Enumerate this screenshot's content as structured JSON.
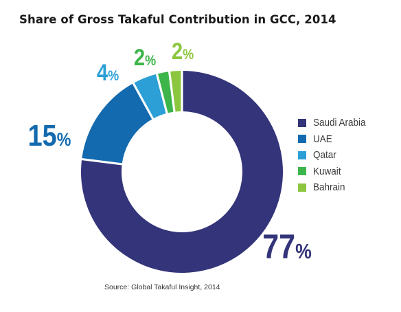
{
  "title": "Share of Gross Takaful Contribution in GCC, 2014",
  "source": "Source: Global Takaful Insight, 2014",
  "chart_data": {
    "type": "pie",
    "style": "donut",
    "title": "Share of Gross Takaful Contribution in GCC, 2014",
    "categories": [
      "Saudi Arabia",
      "UAE",
      "Qatar",
      "Kuwait",
      "Bahrain"
    ],
    "values": [
      77,
      15,
      4,
      2,
      2
    ],
    "unit": "%",
    "data_labels": [
      "77%",
      "15%",
      "4%",
      "2%",
      "2%"
    ],
    "colors": [
      "#34347a",
      "#136aae",
      "#2b9fd6",
      "#3db54a",
      "#8cc63f"
    ],
    "legend_position": "right"
  }
}
